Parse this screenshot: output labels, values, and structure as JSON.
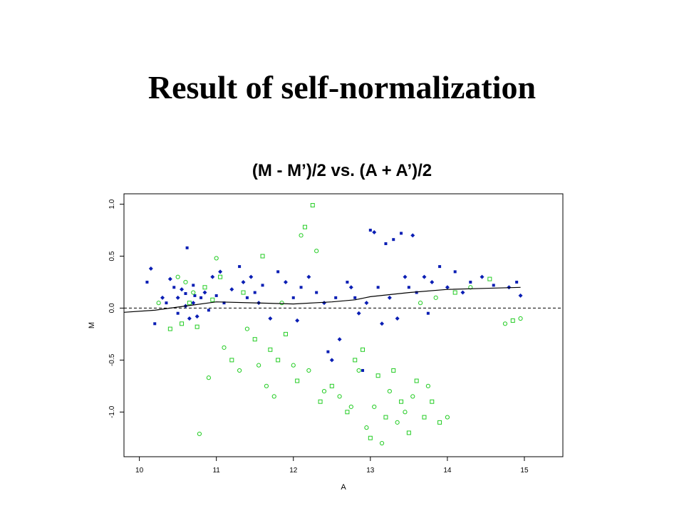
{
  "slide": {
    "title": "Result of self-normalization",
    "subtitle": "(M - M’)/2 vs. (A + A’)/2"
  },
  "colors": {
    "blue": "#0a1eb4",
    "green": "#22cc22",
    "line": "#000000",
    "zero_line": "#000000"
  },
  "chart_data": {
    "type": "scatter",
    "xlabel": "A",
    "ylabel": "M",
    "xlim": [
      9.8,
      15.5
    ],
    "ylim": [
      -1.43,
      1.1
    ],
    "xticks": [
      "10",
      "11",
      "12",
      "13",
      "14",
      "15"
    ],
    "yticks": [
      "-1.0",
      "-0.5",
      "0.0",
      "0.5",
      "1.0"
    ],
    "grid": false,
    "zero_line": {
      "y": 0.0,
      "style": "dashed"
    },
    "series": [
      {
        "color": "blue",
        "points": [
          [
            10.1,
            0.25
          ],
          [
            10.15,
            0.38
          ],
          [
            10.2,
            -0.15
          ],
          [
            10.3,
            0.1
          ],
          [
            10.35,
            0.05
          ],
          [
            10.4,
            0.28
          ],
          [
            10.45,
            0.2
          ],
          [
            10.5,
            0.1
          ],
          [
            10.5,
            -0.05
          ],
          [
            10.55,
            0.18
          ],
          [
            10.6,
            0.14
          ],
          [
            10.6,
            0.02
          ],
          [
            10.62,
            0.58
          ],
          [
            10.65,
            -0.1
          ],
          [
            10.7,
            0.22
          ],
          [
            10.7,
            0.05
          ],
          [
            10.72,
            0.12
          ],
          [
            10.75,
            -0.08
          ],
          [
            10.8,
            0.1
          ],
          [
            10.85,
            0.15
          ],
          [
            10.9,
            -0.02
          ],
          [
            10.95,
            0.3
          ],
          [
            11.0,
            0.12
          ],
          [
            11.05,
            0.35
          ],
          [
            11.1,
            0.05
          ],
          [
            11.2,
            0.18
          ],
          [
            11.3,
            0.4
          ],
          [
            11.35,
            0.25
          ],
          [
            11.4,
            0.1
          ],
          [
            11.45,
            0.3
          ],
          [
            11.5,
            0.15
          ],
          [
            11.55,
            0.05
          ],
          [
            11.6,
            0.22
          ],
          [
            11.7,
            -0.1
          ],
          [
            11.8,
            0.35
          ],
          [
            11.9,
            0.25
          ],
          [
            12.0,
            0.1
          ],
          [
            12.05,
            -0.12
          ],
          [
            12.1,
            0.2
          ],
          [
            12.2,
            0.3
          ],
          [
            12.3,
            0.15
          ],
          [
            12.4,
            0.05
          ],
          [
            12.45,
            -0.42
          ],
          [
            12.5,
            -0.5
          ],
          [
            12.55,
            0.1
          ],
          [
            12.6,
            -0.3
          ],
          [
            12.7,
            0.25
          ],
          [
            12.75,
            0.2
          ],
          [
            12.8,
            0.1
          ],
          [
            12.85,
            -0.05
          ],
          [
            12.9,
            -0.6
          ],
          [
            12.95,
            0.05
          ],
          [
            13.0,
            0.75
          ],
          [
            13.05,
            0.73
          ],
          [
            13.1,
            0.2
          ],
          [
            13.15,
            -0.15
          ],
          [
            13.2,
            0.62
          ],
          [
            13.25,
            0.1
          ],
          [
            13.3,
            0.66
          ],
          [
            13.35,
            -0.1
          ],
          [
            13.4,
            0.72
          ],
          [
            13.45,
            0.3
          ],
          [
            13.5,
            0.2
          ],
          [
            13.55,
            0.7
          ],
          [
            13.6,
            0.15
          ],
          [
            13.7,
            0.3
          ],
          [
            13.75,
            -0.05
          ],
          [
            13.8,
            0.25
          ],
          [
            13.9,
            0.4
          ],
          [
            14.0,
            0.2
          ],
          [
            14.1,
            0.35
          ],
          [
            14.2,
            0.15
          ],
          [
            14.3,
            0.25
          ],
          [
            14.45,
            0.3
          ],
          [
            14.6,
            0.22
          ],
          [
            14.8,
            0.2
          ],
          [
            14.9,
            0.25
          ],
          [
            14.95,
            0.12
          ]
        ]
      },
      {
        "color": "green",
        "points": [
          [
            10.25,
            0.05
          ],
          [
            10.4,
            -0.2
          ],
          [
            10.5,
            0.3
          ],
          [
            10.55,
            -0.15
          ],
          [
            10.6,
            0.25
          ],
          [
            10.65,
            0.05
          ],
          [
            10.7,
            0.15
          ],
          [
            10.75,
            -0.18
          ],
          [
            10.78,
            -1.21
          ],
          [
            10.85,
            0.2
          ],
          [
            10.9,
            -0.67
          ],
          [
            10.95,
            0.08
          ],
          [
            11.0,
            0.48
          ],
          [
            11.05,
            0.3
          ],
          [
            11.1,
            -0.38
          ],
          [
            11.2,
            -0.5
          ],
          [
            11.3,
            -0.6
          ],
          [
            11.35,
            0.15
          ],
          [
            11.4,
            -0.2
          ],
          [
            11.5,
            -0.3
          ],
          [
            11.55,
            -0.55
          ],
          [
            11.6,
            0.5
          ],
          [
            11.65,
            -0.75
          ],
          [
            11.7,
            -0.4
          ],
          [
            11.75,
            -0.85
          ],
          [
            11.8,
            -0.5
          ],
          [
            11.85,
            0.05
          ],
          [
            11.9,
            -0.25
          ],
          [
            12.0,
            -0.55
          ],
          [
            12.05,
            -0.7
          ],
          [
            12.1,
            0.7
          ],
          [
            12.15,
            0.78
          ],
          [
            12.2,
            -0.6
          ],
          [
            12.25,
            0.99
          ],
          [
            12.3,
            0.55
          ],
          [
            12.35,
            -0.9
          ],
          [
            12.4,
            -0.8
          ],
          [
            12.5,
            -0.75
          ],
          [
            12.6,
            -0.85
          ],
          [
            12.7,
            -1.0
          ],
          [
            12.75,
            -0.95
          ],
          [
            12.8,
            -0.5
          ],
          [
            12.85,
            -0.6
          ],
          [
            12.9,
            -0.4
          ],
          [
            12.95,
            -1.15
          ],
          [
            13.0,
            -1.25
          ],
          [
            13.05,
            -0.95
          ],
          [
            13.1,
            -0.65
          ],
          [
            13.15,
            -1.3
          ],
          [
            13.2,
            -1.05
          ],
          [
            13.25,
            -0.8
          ],
          [
            13.3,
            -0.6
          ],
          [
            13.35,
            -1.1
          ],
          [
            13.4,
            -0.9
          ],
          [
            13.45,
            -1.0
          ],
          [
            13.5,
            -1.2
          ],
          [
            13.55,
            -0.85
          ],
          [
            13.6,
            -0.7
          ],
          [
            13.65,
            0.05
          ],
          [
            13.7,
            -1.05
          ],
          [
            13.75,
            -0.75
          ],
          [
            13.8,
            -0.9
          ],
          [
            13.85,
            0.1
          ],
          [
            13.9,
            -1.1
          ],
          [
            14.0,
            -1.05
          ],
          [
            14.1,
            0.15
          ],
          [
            14.3,
            0.2
          ],
          [
            14.55,
            0.28
          ],
          [
            14.75,
            -0.15
          ],
          [
            14.85,
            -0.12
          ],
          [
            14.95,
            -0.1
          ]
        ]
      }
    ],
    "trend_line": [
      [
        9.8,
        -0.04
      ],
      [
        10.2,
        -0.02
      ],
      [
        10.6,
        0.02
      ],
      [
        11.0,
        0.06
      ],
      [
        11.5,
        0.05
      ],
      [
        12.0,
        0.04
      ],
      [
        12.5,
        0.06
      ],
      [
        12.8,
        0.08
      ],
      [
        13.0,
        0.11
      ],
      [
        13.5,
        0.15
      ],
      [
        14.0,
        0.18
      ],
      [
        14.5,
        0.19
      ],
      [
        14.95,
        0.2
      ]
    ]
  }
}
